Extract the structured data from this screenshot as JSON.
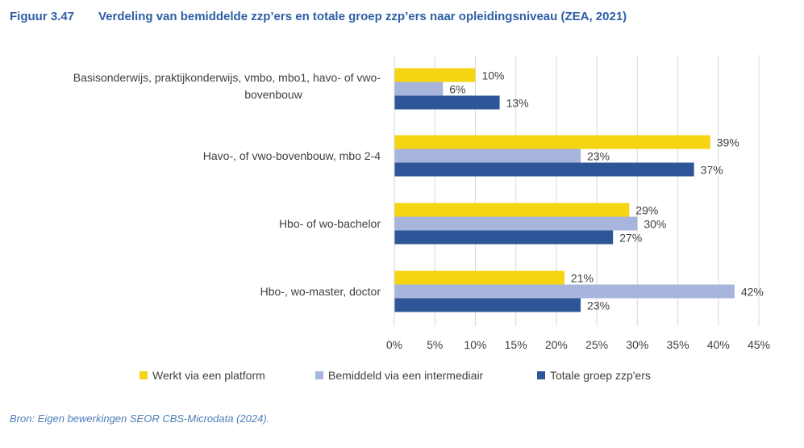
{
  "figure": {
    "number": "Figuur 3.47",
    "title": "Verdeling van bemiddelde zzp’ers en totale groep zzp’ers naar opleidingsniveau (ZEA, 2021)",
    "source": "Bron: Eigen bewerkingen SEOR CBS-Microdata (2024)."
  },
  "chart_data": {
    "type": "bar",
    "orientation": "horizontal",
    "title": "",
    "xlabel": "",
    "ylabel": "",
    "categories": [
      [
        "Basisonderwijs, praktijkonderwijs, vmbo, mbo1, havo- of vwo-",
        "bovenbouw"
      ],
      [
        "Havo-, of vwo-bovenbouw, mbo 2-4"
      ],
      [
        "Hbo- of wo-bachelor"
      ],
      [
        "Hbo-, wo-master, doctor"
      ]
    ],
    "series": [
      {
        "name": "Werkt via een platform",
        "color": "#F5D411",
        "values": [
          10,
          39,
          29,
          21
        ]
      },
      {
        "name": "Bemiddeld via een intermediair",
        "color": "#A7B5DC",
        "values": [
          6,
          23,
          30,
          42
        ]
      },
      {
        "name": "Totale groep zzp'ers",
        "color": "#2D5597",
        "values": [
          13,
          37,
          27,
          23
        ]
      }
    ],
    "value_labels": [
      [
        "10%",
        "39%",
        "29%",
        "21%"
      ],
      [
        "6%",
        "23%",
        "30%",
        "42%"
      ],
      [
        "13%",
        "37%",
        "27%",
        "23%"
      ]
    ],
    "xlim": [
      0,
      45
    ],
    "xticks": [
      0,
      5,
      10,
      15,
      20,
      25,
      30,
      35,
      40,
      45
    ],
    "xtick_labels": [
      "0%",
      "5%",
      "10%",
      "15%",
      "20%",
      "25%",
      "30%",
      "35%",
      "40%",
      "45%"
    ],
    "grid": "vertical",
    "legend_position": "bottom"
  },
  "colors": {
    "title": "#2D5FA5",
    "gridline": "#D9D9D9",
    "text": "#404040"
  }
}
